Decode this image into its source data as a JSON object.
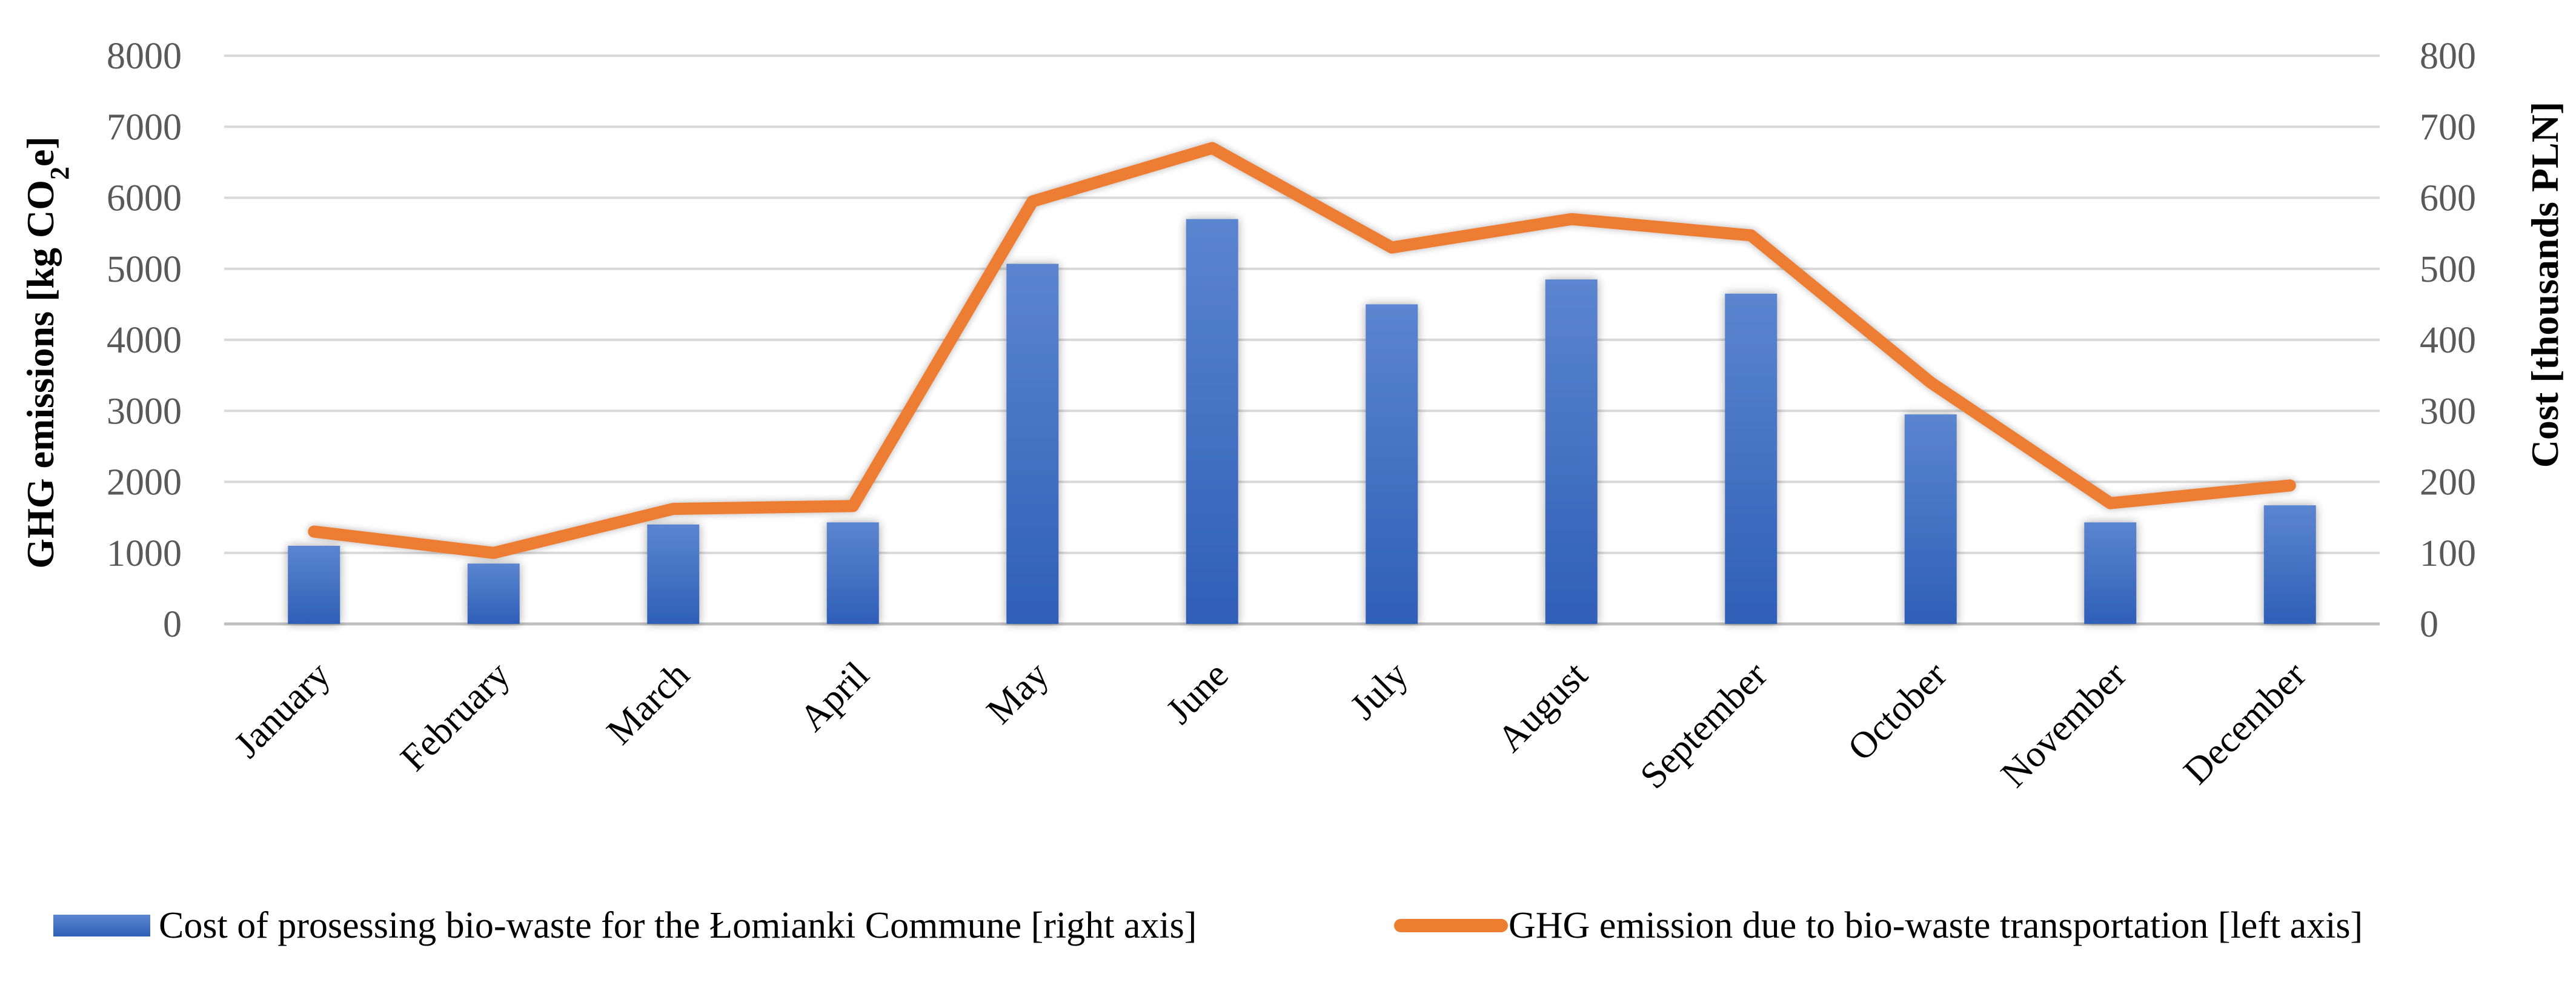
{
  "chart_data": {
    "type": "bar",
    "title": "",
    "categories": [
      "January",
      "February",
      "March",
      "April",
      "May",
      "June",
      "July",
      "August",
      "September",
      "October",
      "November",
      "December"
    ],
    "series": [
      {
        "name": "Cost of prosessing bio-waste for the Łomianki Commune [right axis]",
        "type": "bar",
        "axis": "right",
        "color": "#4472C4",
        "values": [
          110,
          85,
          140,
          143,
          507,
          570,
          450,
          485,
          465,
          295,
          143,
          167
        ]
      },
      {
        "name": "GHG emission due to bio-waste transportation [left  axis]",
        "type": "line",
        "axis": "left",
        "color": "#ED7D31",
        "values": [
          1300,
          1000,
          1620,
          1660,
          5950,
          6700,
          5300,
          5700,
          5470,
          3400,
          1700,
          1950
        ]
      }
    ],
    "y_left": {
      "label_main": "GHG emissions [kg CO",
      "label_sub": "2",
      "label_end": "e]",
      "range": [
        0,
        8000
      ],
      "ticks": [
        "0",
        "1000",
        "2000",
        "3000",
        "4000",
        "5000",
        "6000",
        "7000",
        "8000"
      ]
    },
    "y_right": {
      "label": "Cost [thousands PLN]",
      "range": [
        0,
        800
      ],
      "ticks": [
        "0",
        "100",
        "200",
        "300",
        "400",
        "500",
        "600",
        "700",
        "800"
      ]
    },
    "grid": true,
    "legend_position": "bottom"
  }
}
